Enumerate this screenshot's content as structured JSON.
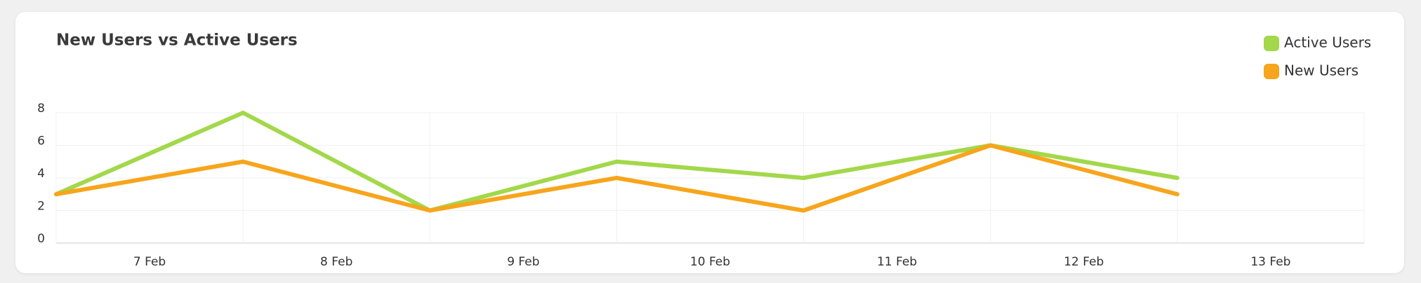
{
  "chart_data": {
    "type": "line",
    "title": "New Users vs Active Users",
    "categories": [
      "7 Feb",
      "8 Feb",
      "9 Feb",
      "10 Feb",
      "11 Feb",
      "12 Feb",
      "13 Feb"
    ],
    "series": [
      {
        "name": "Active Users",
        "color": "#a2d84a",
        "values": [
          3,
          8,
          2,
          5,
          4,
          6,
          4
        ]
      },
      {
        "name": "New Users",
        "color": "#f7a51c",
        "values": [
          3,
          5,
          2,
          4,
          2,
          6,
          3
        ]
      }
    ],
    "ylim": [
      0,
      8
    ],
    "yticks": [
      0,
      2,
      4,
      6,
      8
    ],
    "grid": true,
    "legend": "top-right"
  }
}
